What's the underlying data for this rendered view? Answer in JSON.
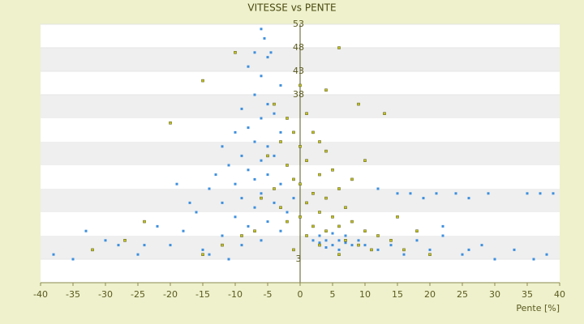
{
  "chart_data": {
    "type": "scatter",
    "title": "VITESSE vs PENTE",
    "x_label": "Pente [%]",
    "xlim": [
      -40,
      40
    ],
    "xticks": [
      -40,
      -35,
      -30,
      -25,
      -20,
      -15,
      -10,
      -5,
      0,
      5,
      10,
      15,
      20,
      25,
      30,
      35,
      40
    ],
    "ylim": [
      -2,
      53
    ],
    "yticks": [
      3,
      38,
      43,
      48,
      53
    ],
    "grid": true,
    "series": [
      {
        "color": "#3d8fde",
        "x": [
          -6,
          -5.5,
          -7,
          -5,
          -4.5,
          -8,
          -6,
          -3,
          -7,
          -5,
          -9,
          -4,
          -6,
          -8,
          -10,
          -3,
          -7,
          -5,
          -12,
          -9,
          -4,
          -6,
          -11,
          -2,
          -8,
          -13,
          -5,
          -7,
          -3,
          -10,
          -14,
          -6,
          -9,
          -1,
          -12,
          -4,
          -7,
          -16,
          -2,
          -10,
          -5,
          -8,
          -18,
          -3,
          -12,
          -6,
          -20,
          -9,
          -15,
          -25,
          -30,
          -35,
          2,
          3,
          4,
          5,
          6,
          7,
          8,
          9,
          3,
          5,
          7,
          4,
          6,
          10,
          12,
          14,
          16,
          18,
          20,
          22,
          25,
          28,
          30,
          33,
          36,
          38,
          15,
          17,
          19,
          21,
          24,
          26,
          29,
          35,
          37,
          39,
          12,
          18,
          22,
          26,
          -38,
          -33,
          -28,
          -22,
          -19,
          -17,
          -24,
          -14,
          -11
        ],
        "values": [
          52,
          50,
          47,
          46,
          47,
          44,
          42,
          40,
          38,
          36,
          35,
          34,
          33,
          31,
          30,
          30,
          28,
          27,
          27,
          25,
          25,
          24,
          23,
          23,
          22,
          21,
          21,
          20,
          19,
          19,
          18,
          17,
          16,
          16,
          15,
          15,
          14,
          13,
          13,
          12,
          11,
          10,
          9,
          9,
          8,
          7,
          6,
          6,
          5,
          4,
          7,
          3,
          7,
          6.5,
          7,
          6,
          7,
          6.5,
          6,
          7,
          8,
          8.5,
          8,
          5.5,
          5,
          6,
          5,
          6,
          4,
          7,
          5,
          8,
          4,
          6,
          3,
          5,
          3,
          4,
          17,
          17,
          16,
          17,
          17,
          16,
          17,
          17,
          17,
          17,
          18,
          9,
          10,
          5,
          4,
          9,
          6,
          10,
          19,
          15,
          6,
          4,
          3
        ]
      },
      {
        "color": "#c2c21e",
        "x": [
          -4,
          -2,
          0,
          1,
          -1,
          2,
          3,
          -3,
          0,
          4,
          -5,
          1,
          -2,
          5,
          3,
          -1,
          0,
          6,
          -4,
          2,
          4,
          -6,
          1,
          7,
          -3,
          3,
          5,
          0,
          8,
          -2,
          2,
          6,
          10,
          -7,
          4,
          12,
          1,
          -9,
          7,
          14,
          3,
          -12,
          9,
          16,
          -1,
          11,
          20,
          -15,
          6,
          -20,
          -15,
          6,
          4,
          9,
          13,
          -10,
          -24,
          -27,
          -32,
          8,
          10,
          15,
          18
        ],
        "values": [
          36,
          33,
          40,
          34,
          30,
          30,
          28,
          28,
          27,
          26,
          25,
          24,
          23,
          22,
          21,
          20,
          19,
          18,
          18,
          17,
          16,
          16,
          15,
          14,
          14,
          13,
          12,
          12,
          11,
          11,
          10,
          10,
          9,
          9,
          9,
          8,
          8,
          8,
          7,
          7,
          6,
          6,
          6,
          5,
          5,
          5,
          4,
          4,
          4,
          32,
          41,
          48,
          39,
          36,
          34,
          47,
          11,
          7,
          5,
          20,
          24,
          12,
          9
        ]
      }
    ]
  }
}
